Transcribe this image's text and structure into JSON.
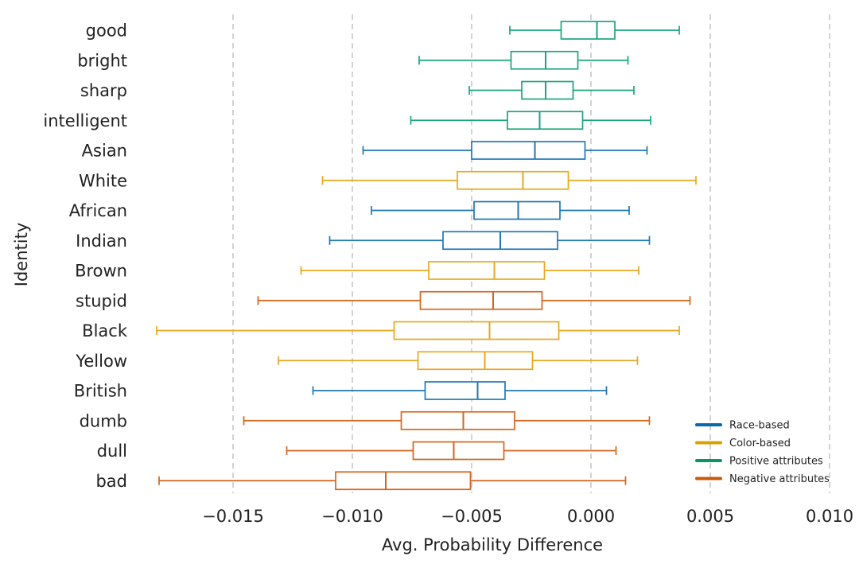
{
  "chart_data": {
    "type": "box",
    "orientation": "horizontal",
    "xlabel": "Avg. Probability Difference",
    "ylabel": "Identity",
    "xlim": [
      -0.0186,
      0.0104
    ],
    "xticks": [
      -0.015,
      -0.01,
      -0.005,
      0.0,
      0.005,
      0.01
    ],
    "xtick_labels": [
      "−0.015",
      "−0.010",
      "−0.005",
      "0.000",
      "0.005",
      "0.010"
    ],
    "grid": "vertical dashed",
    "legend_position": "bottom-right",
    "groups": [
      {
        "name": "Race-based",
        "color": "#1f77b4"
      },
      {
        "name": "Color-based",
        "color": "#e8a71f"
      },
      {
        "name": "Positive attributes",
        "color": "#1aa57f"
      },
      {
        "name": "Negative attributes",
        "color": "#d4651c"
      }
    ],
    "legend_colors": [
      "#0a6aa8",
      "#d9a200",
      "#0c9466",
      "#c75a0a"
    ],
    "categories": [
      "good",
      "bright",
      "sharp",
      "intelligent",
      "Asian",
      "White",
      "African",
      "Indian",
      "Brown",
      "stupid",
      "Black",
      "Yellow",
      "British",
      "dumb",
      "dull",
      "bad"
    ],
    "boxes": [
      {
        "label": "good",
        "group": "Positive attributes",
        "whisker_low": -0.0034,
        "q1": -0.00125,
        "median": 0.00025,
        "q3": 0.001,
        "whisker_high": 0.0037
      },
      {
        "label": "bright",
        "group": "Positive attributes",
        "whisker_low": -0.0072,
        "q1": -0.00335,
        "median": -0.0019,
        "q3": -0.00055,
        "whisker_high": 0.00155
      },
      {
        "label": "sharp",
        "group": "Positive attributes",
        "whisker_low": -0.0051,
        "q1": -0.0029,
        "median": -0.0019,
        "q3": -0.00075,
        "whisker_high": 0.0018
      },
      {
        "label": "intelligent",
        "group": "Positive attributes",
        "whisker_low": -0.00755,
        "q1": -0.0035,
        "median": -0.00215,
        "q3": -0.00035,
        "whisker_high": 0.0025
      },
      {
        "label": "Asian",
        "group": "Race-based",
        "whisker_low": -0.00955,
        "q1": -0.005,
        "median": -0.00235,
        "q3": -0.00025,
        "whisker_high": 0.00235
      },
      {
        "label": "White",
        "group": "Color-based",
        "whisker_low": -0.01125,
        "q1": -0.0056,
        "median": -0.00285,
        "q3": -0.00095,
        "whisker_high": 0.0044
      },
      {
        "label": "African",
        "group": "Race-based",
        "whisker_low": -0.0092,
        "q1": -0.0049,
        "median": -0.00305,
        "q3": -0.0013,
        "whisker_high": 0.0016
      },
      {
        "label": "Indian",
        "group": "Race-based",
        "whisker_low": -0.01095,
        "q1": -0.0062,
        "median": -0.0038,
        "q3": -0.0014,
        "whisker_high": 0.00245
      },
      {
        "label": "Brown",
        "group": "Color-based",
        "whisker_low": -0.01215,
        "q1": -0.0068,
        "median": -0.00405,
        "q3": -0.00195,
        "whisker_high": 0.002
      },
      {
        "label": "stupid",
        "group": "Negative attributes",
        "whisker_low": -0.01395,
        "q1": -0.00715,
        "median": -0.0041,
        "q3": -0.00205,
        "whisker_high": 0.00415
      },
      {
        "label": "Black",
        "group": "Color-based",
        "whisker_low": -0.0182,
        "q1": -0.00825,
        "median": -0.00425,
        "q3": -0.00135,
        "whisker_high": 0.0037
      },
      {
        "label": "Yellow",
        "group": "Color-based",
        "whisker_low": -0.0131,
        "q1": -0.00725,
        "median": -0.00445,
        "q3": -0.00245,
        "whisker_high": 0.00195
      },
      {
        "label": "British",
        "group": "Race-based",
        "whisker_low": -0.01165,
        "q1": -0.00695,
        "median": -0.00475,
        "q3": -0.0036,
        "whisker_high": 0.00065
      },
      {
        "label": "dumb",
        "group": "Negative attributes",
        "whisker_low": -0.01455,
        "q1": -0.00795,
        "median": -0.00535,
        "q3": -0.0032,
        "whisker_high": 0.00245
      },
      {
        "label": "dull",
        "group": "Negative attributes",
        "whisker_low": -0.01275,
        "q1": -0.00745,
        "median": -0.00575,
        "q3": -0.00365,
        "whisker_high": 0.00105
      },
      {
        "label": "bad",
        "group": "Negative attributes",
        "whisker_low": -0.0181,
        "q1": -0.0107,
        "median": -0.0086,
        "q3": -0.00505,
        "whisker_high": 0.00145
      }
    ]
  }
}
